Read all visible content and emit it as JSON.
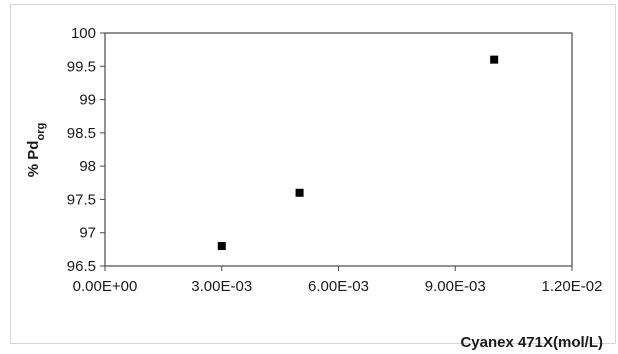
{
  "chart_data": {
    "type": "scatter",
    "xlabel": "Cyanex 471X(mol/L)",
    "ylabel_main": "% Pd",
    "ylabel_sub": "org",
    "xlim": [
      0,
      0.012
    ],
    "ylim": [
      96.5,
      100
    ],
    "x_ticks": [
      0,
      0.003,
      0.006,
      0.009,
      0.012
    ],
    "x_tick_labels": [
      "0.00E+00",
      "3.00E-03",
      "6.00E-03",
      "9.00E-03",
      "1.20E-02"
    ],
    "y_ticks": [
      96.5,
      97,
      97.5,
      98,
      98.5,
      99,
      99.5,
      100
    ],
    "y_tick_labels": [
      "96.5",
      "97",
      "97.5",
      "98",
      "98.5",
      "99",
      "99.5",
      "100"
    ],
    "grid": false,
    "marker": "square",
    "marker_color": "#000000",
    "series": [
      {
        "x": [
          0.003,
          0.005,
          0.01
        ],
        "y": [
          96.8,
          97.6,
          99.6
        ]
      }
    ]
  }
}
